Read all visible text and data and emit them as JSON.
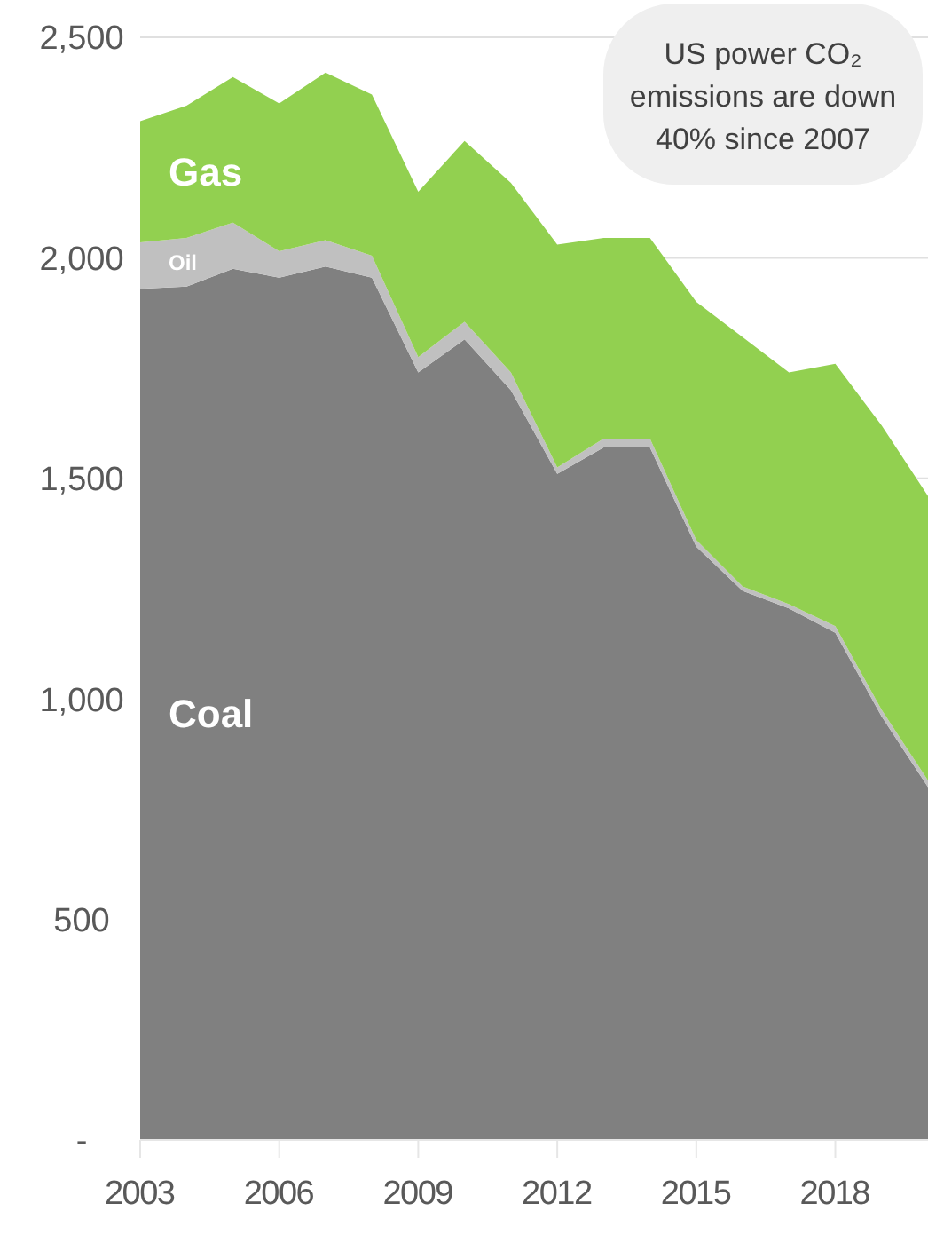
{
  "chart_data": {
    "type": "area",
    "stacked": true,
    "x": [
      2003,
      2004,
      2005,
      2006,
      2007,
      2008,
      2009,
      2010,
      2011,
      2012,
      2013,
      2014,
      2015,
      2016,
      2017,
      2018,
      2019,
      2020
    ],
    "series": [
      {
        "name": "Coal",
        "color": "#808080",
        "values": [
          1930,
          1935,
          1975,
          1955,
          1980,
          1955,
          1740,
          1815,
          1700,
          1510,
          1570,
          1570,
          1345,
          1245,
          1205,
          1150,
          960,
          800
        ]
      },
      {
        "name": "Oil",
        "color": "#c0c0c0",
        "values": [
          105,
          110,
          105,
          60,
          60,
          50,
          35,
          40,
          40,
          15,
          20,
          20,
          15,
          10,
          10,
          15,
          15,
          15
        ]
      },
      {
        "name": "Gas",
        "color": "#92d050",
        "values": [
          275,
          300,
          330,
          335,
          380,
          365,
          375,
          410,
          430,
          505,
          455,
          455,
          540,
          565,
          525,
          595,
          645,
          645
        ]
      }
    ],
    "xlim": [
      2003,
      2020
    ],
    "xticks": [
      2003,
      2006,
      2009,
      2012,
      2015,
      2018
    ],
    "ylim": [
      0,
      2500
    ],
    "yticks": [
      {
        "value": 0,
        "label": "-"
      },
      {
        "value": 500,
        "label": "500"
      },
      {
        "value": 1000,
        "label": "1,000"
      },
      {
        "value": 1500,
        "label": "1,500"
      },
      {
        "value": 2000,
        "label": "2,000"
      },
      {
        "value": 2500,
        "label": "2,500"
      }
    ],
    "grid": "y",
    "annotations": [
      "US power CO₂ emissions are down 40% since 2007"
    ]
  }
}
